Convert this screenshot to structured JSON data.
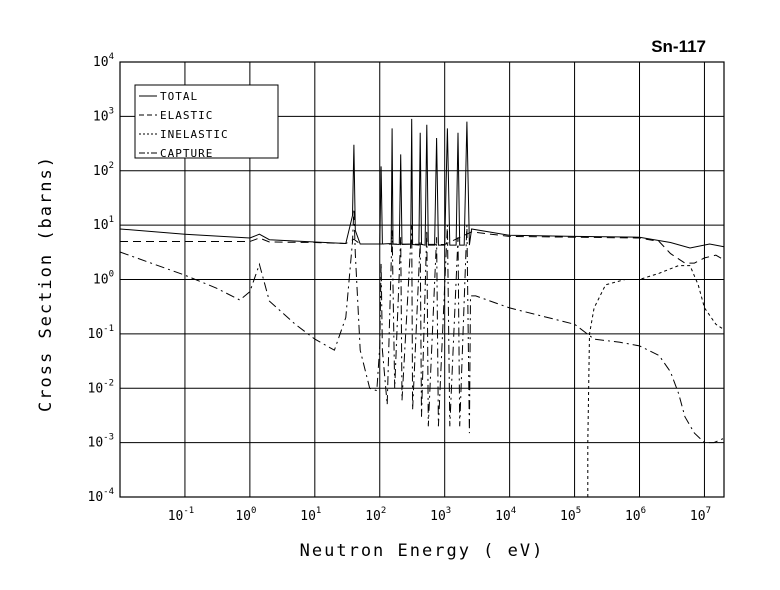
{
  "chart_data": {
    "type": "line",
    "title": "Sn-117",
    "xlabel": "Neutron Energy ( eV)",
    "ylabel": "Cross Section (barns)",
    "x_scale": "log",
    "y_scale": "log",
    "xlim": [
      0.01,
      20000000
    ],
    "ylim": [
      0.0001,
      10000
    ],
    "grid": true,
    "legend_position": "top-left",
    "x_ticks": [
      {
        "base": "10",
        "exp": "-1"
      },
      {
        "base": "10",
        "exp": "0"
      },
      {
        "base": "10",
        "exp": "1"
      },
      {
        "base": "10",
        "exp": "2"
      },
      {
        "base": "10",
        "exp": "3"
      },
      {
        "base": "10",
        "exp": "4"
      },
      {
        "base": "10",
        "exp": "5"
      },
      {
        "base": "10",
        "exp": "6"
      },
      {
        "base": "10",
        "exp": "7"
      }
    ],
    "y_ticks": [
      {
        "base": "10",
        "exp": "-4"
      },
      {
        "base": "10",
        "exp": "-3"
      },
      {
        "base": "10",
        "exp": "-2"
      },
      {
        "base": "10",
        "exp": "-1"
      },
      {
        "base": "10",
        "exp": "0"
      },
      {
        "base": "10",
        "exp": "1"
      },
      {
        "base": "10",
        "exp": "2"
      },
      {
        "base": "10",
        "exp": "3"
      },
      {
        "base": "10",
        "exp": "4"
      }
    ],
    "series": [
      {
        "name": "TOTAL",
        "dash": "solid",
        "points": [
          [
            0.01,
            8.5
          ],
          [
            0.1,
            6.8
          ],
          [
            1,
            5.8
          ],
          [
            1.4,
            6.8
          ],
          [
            2,
            5.4
          ],
          [
            10,
            4.9
          ],
          [
            30,
            4.6
          ],
          [
            38,
            15
          ],
          [
            40,
            300
          ],
          [
            42,
            8
          ],
          [
            50,
            4.5
          ],
          [
            100,
            4.5
          ],
          [
            105,
            120
          ],
          [
            110,
            4.5
          ],
          [
            150,
            4.6
          ],
          [
            155,
            600
          ],
          [
            160,
            4.5
          ],
          [
            200,
            4.4
          ],
          [
            210,
            200
          ],
          [
            220,
            4.4
          ],
          [
            300,
            4.5
          ],
          [
            310,
            900
          ],
          [
            320,
            4.4
          ],
          [
            400,
            4.3
          ],
          [
            420,
            500
          ],
          [
            440,
            4.4
          ],
          [
            500,
            4.3
          ],
          [
            530,
            700
          ],
          [
            560,
            4.3
          ],
          [
            700,
            4.3
          ],
          [
            750,
            400
          ],
          [
            800,
            4.3
          ],
          [
            1000,
            4.3
          ],
          [
            1100,
            600
          ],
          [
            1200,
            4.3
          ],
          [
            1500,
            4.3
          ],
          [
            1600,
            500
          ],
          [
            1700,
            4.3
          ],
          [
            2000,
            4.3
          ],
          [
            2200,
            800
          ],
          [
            2400,
            4.3
          ],
          [
            2600,
            8.5
          ],
          [
            10000,
            6.5
          ],
          [
            100000,
            6.2
          ],
          [
            1000000,
            6.0
          ],
          [
            3000000,
            4.8
          ],
          [
            6000000,
            3.8
          ],
          [
            12000000,
            4.5
          ],
          [
            20000000,
            4.0
          ]
        ]
      },
      {
        "name": "ELASTIC",
        "dash": "long-dash",
        "points": [
          [
            0.01,
            5.0
          ],
          [
            0.1,
            5.0
          ],
          [
            1,
            5.0
          ],
          [
            1.4,
            5.8
          ],
          [
            2,
            4.9
          ],
          [
            10,
            4.8
          ],
          [
            30,
            4.6
          ],
          [
            40,
            5.5
          ],
          [
            50,
            4.5
          ],
          [
            100,
            4.5
          ],
          [
            1000,
            4.4
          ],
          [
            2600,
            7.5
          ],
          [
            10000,
            6.2
          ],
          [
            100000,
            6.0
          ],
          [
            1000000,
            5.8
          ],
          [
            2000000,
            5.0
          ],
          [
            3000000,
            3.0
          ],
          [
            5000000,
            2.0
          ],
          [
            7000000,
            2.0
          ],
          [
            10000000,
            2.5
          ],
          [
            15000000,
            2.8
          ],
          [
            20000000,
            2.3
          ]
        ]
      },
      {
        "name": "INELASTIC",
        "dash": "short-dash",
        "points": [
          [
            160000,
            0.0001
          ],
          [
            160000,
            0.001
          ],
          [
            170000,
            0.1
          ],
          [
            200000,
            0.3
          ],
          [
            300000,
            0.8
          ],
          [
            600000,
            1.0
          ],
          [
            1000000,
            1.0
          ],
          [
            2000000,
            1.3
          ],
          [
            4000000,
            1.8
          ],
          [
            6000000,
            1.8
          ],
          [
            8000000,
            0.8
          ],
          [
            10000000,
            0.3
          ],
          [
            15000000,
            0.15
          ],
          [
            20000000,
            0.12
          ]
        ]
      },
      {
        "name": "CAPTURE",
        "dash": "dash-dot",
        "points": [
          [
            0.01,
            3.2
          ],
          [
            0.1,
            1.2
          ],
          [
            0.3,
            0.7
          ],
          [
            0.7,
            0.42
          ],
          [
            1,
            0.6
          ],
          [
            1.4,
            1.9
          ],
          [
            2,
            0.4
          ],
          [
            5,
            0.15
          ],
          [
            10,
            0.08
          ],
          [
            20,
            0.05
          ],
          [
            30,
            0.2
          ],
          [
            38,
            5
          ],
          [
            40,
            20
          ],
          [
            42,
            3
          ],
          [
            50,
            0.05
          ],
          [
            70,
            0.01
          ],
          [
            90,
            0.009
          ],
          [
            100,
            0.06
          ],
          [
            105,
            2
          ],
          [
            110,
            0.05
          ],
          [
            130,
            0.005
          ],
          [
            155,
            8
          ],
          [
            170,
            0.01
          ],
          [
            210,
            6
          ],
          [
            220,
            0.006
          ],
          [
            310,
            10
          ],
          [
            320,
            0.004
          ],
          [
            420,
            5
          ],
          [
            440,
            0.003
          ],
          [
            530,
            8
          ],
          [
            560,
            0.002
          ],
          [
            750,
            6
          ],
          [
            800,
            0.002
          ],
          [
            1100,
            10
          ],
          [
            1200,
            0.002
          ],
          [
            1600,
            6
          ],
          [
            1700,
            0.002
          ],
          [
            2200,
            10
          ],
          [
            2400,
            0.0015
          ],
          [
            2500,
            0.5
          ],
          [
            3000,
            0.5
          ],
          [
            10000,
            0.3
          ],
          [
            100000,
            0.15
          ],
          [
            200000,
            0.08
          ],
          [
            500000,
            0.07
          ],
          [
            1000000,
            0.06
          ],
          [
            2000000,
            0.04
          ],
          [
            3000000,
            0.02
          ],
          [
            4000000,
            0.008
          ],
          [
            5000000,
            0.003
          ],
          [
            7000000,
            0.0015
          ],
          [
            10000000,
            0.001
          ],
          [
            14000000,
            0.001
          ],
          [
            20000000,
            0.0012
          ]
        ]
      }
    ]
  }
}
